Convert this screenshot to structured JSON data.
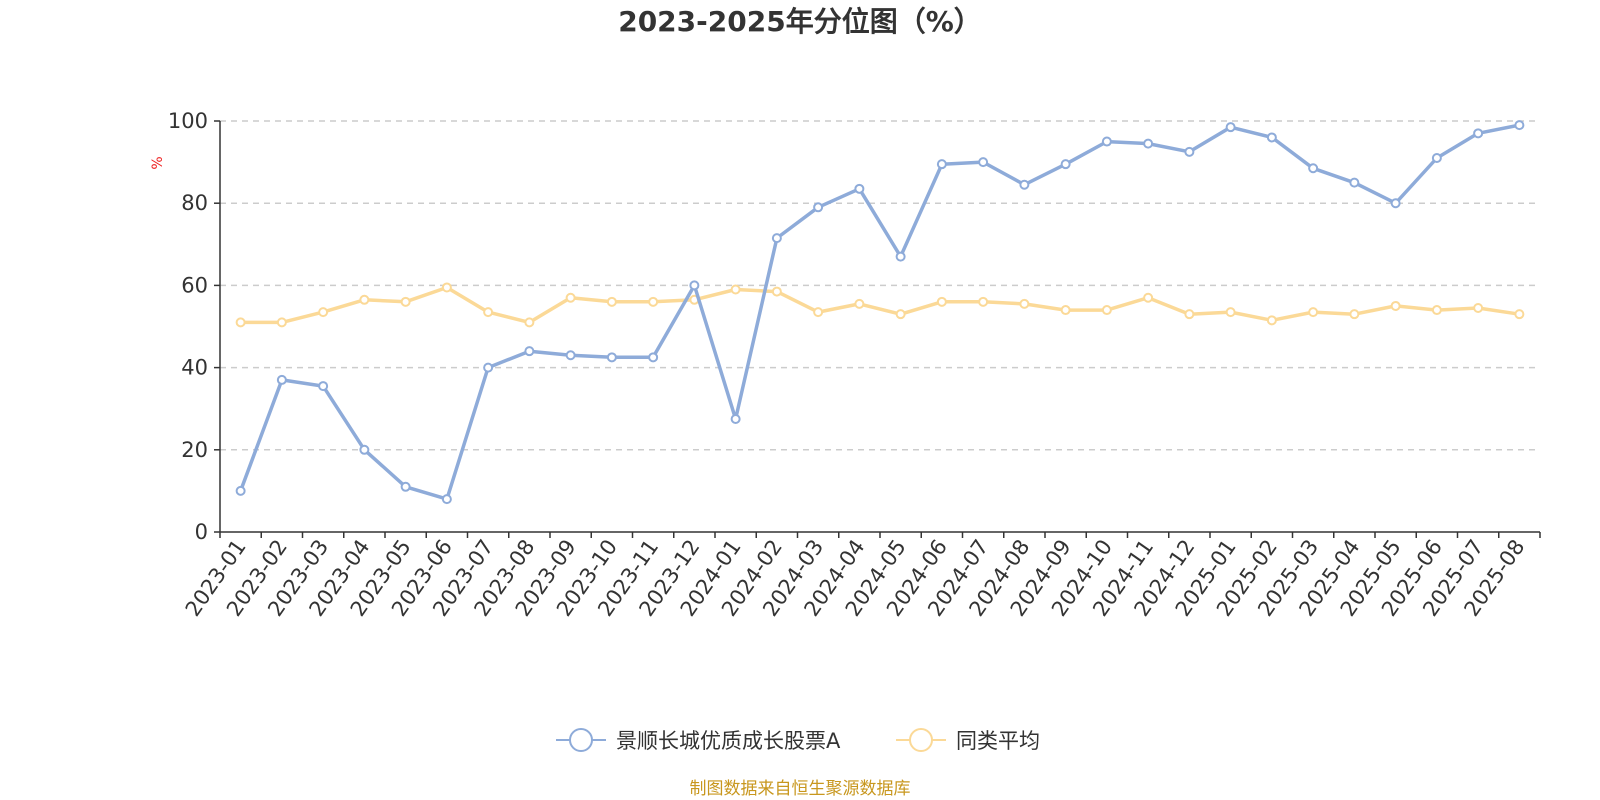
{
  "chart_data": {
    "type": "line",
    "title": "2023-2025年分位图（%）",
    "ylabel": "%",
    "xlabel": "",
    "ylim": [
      0,
      100
    ],
    "yticks": [
      0,
      20,
      40,
      60,
      80,
      100
    ],
    "grid": true,
    "legend_position": "bottom",
    "categories": [
      "2023-01",
      "2023-02",
      "2023-03",
      "2023-04",
      "2023-05",
      "2023-06",
      "2023-07",
      "2023-08",
      "2023-09",
      "2023-10",
      "2023-11",
      "2023-12",
      "2024-01",
      "2024-02",
      "2024-03",
      "2024-04",
      "2024-05",
      "2024-06",
      "2024-07",
      "2024-08",
      "2024-09",
      "2024-10",
      "2024-11",
      "2024-12",
      "2025-01",
      "2025-02",
      "2025-03",
      "2025-04",
      "2025-05",
      "2025-06",
      "2025-07",
      "2025-08"
    ],
    "series": [
      {
        "name": "景顺长城优质成长股票A",
        "color": "#8eabd9",
        "values": [
          10,
          37,
          35.5,
          20,
          11,
          8,
          40,
          44,
          43,
          42.5,
          42.5,
          60,
          27.5,
          71.5,
          79,
          83.5,
          67,
          89.5,
          90,
          84.5,
          89.5,
          95,
          94.5,
          92.5,
          98.5,
          96,
          88.5,
          85,
          80,
          91,
          97,
          99
        ]
      },
      {
        "name": "同类平均",
        "color": "#fbd997",
        "values": [
          51,
          51,
          53.5,
          56.5,
          56,
          59.5,
          53.5,
          51,
          57,
          56,
          56,
          56.5,
          59,
          58.5,
          53.5,
          55.5,
          53,
          56,
          56,
          55.5,
          54,
          54,
          57,
          53,
          53.5,
          51.5,
          53.5,
          53,
          55,
          54,
          54.5,
          53
        ]
      }
    ],
    "source_note": "制图数据来自恒生聚源数据库"
  }
}
